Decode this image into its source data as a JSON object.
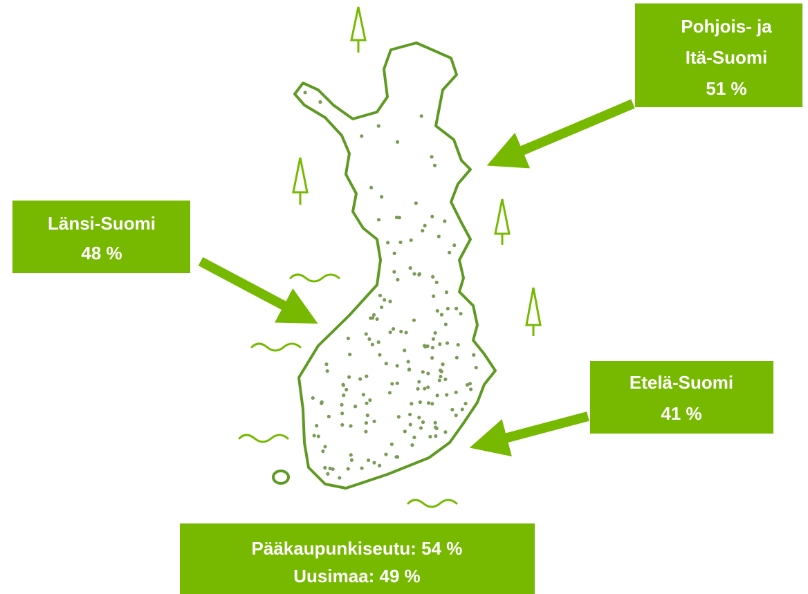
{
  "callouts": [
    {
      "lines": [
        "Pohjois- ja",
        "Itä-Suomi",
        "51 %"
      ]
    },
    {
      "lines": [
        "Länsi-Suomi",
        "48 %"
      ]
    },
    {
      "lines": [
        "Etelä-Suomi",
        "41 %"
      ]
    },
    {
      "lines": [
        "Pääkaupunkiseutu: 54 %",
        "Uusimaa: 49 %"
      ]
    }
  ]
}
